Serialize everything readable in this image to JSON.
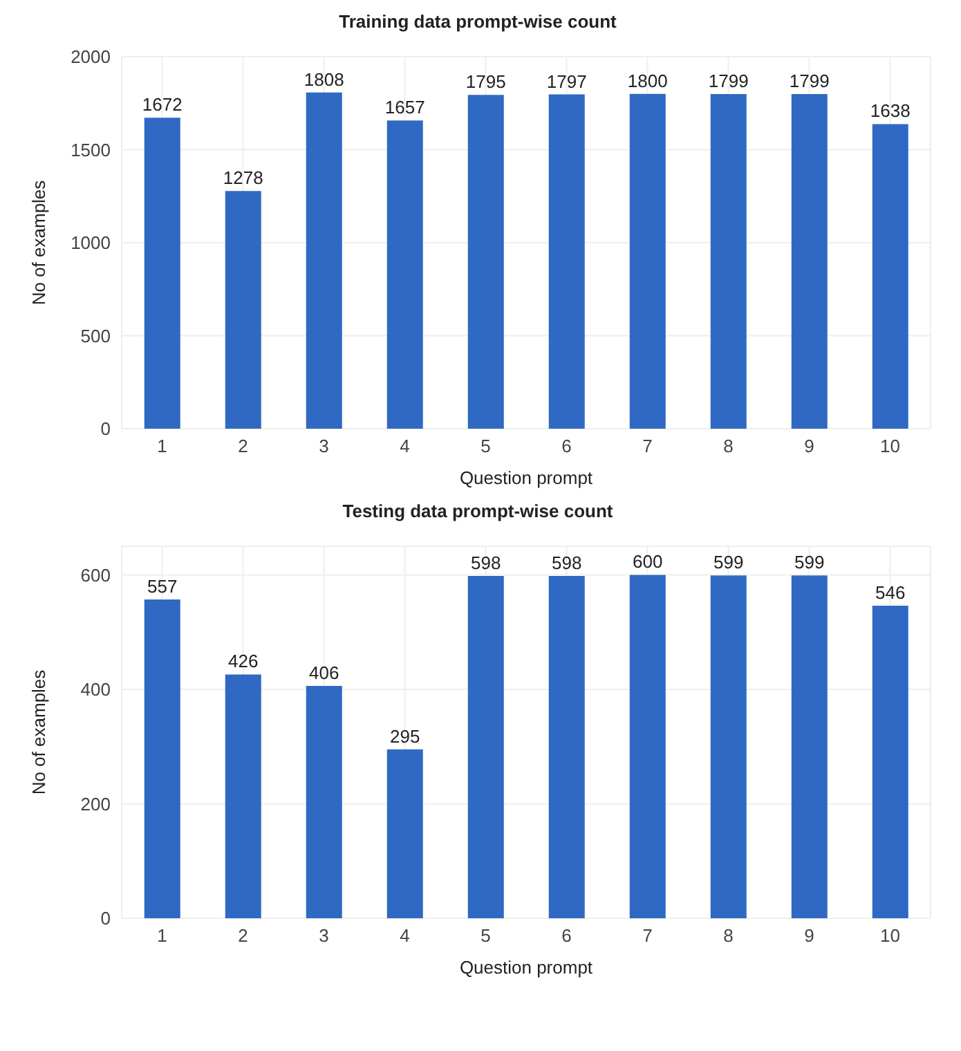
{
  "chart_data": [
    {
      "type": "bar",
      "title": "Training data prompt-wise count",
      "xlabel": "Question prompt",
      "ylabel": "No of examples",
      "categories": [
        "1",
        "2",
        "3",
        "4",
        "5",
        "6",
        "7",
        "8",
        "9",
        "10"
      ],
      "series": [
        {
          "color": "#2f69c3",
          "values": [
            1672,
            1278,
            1808,
            1657,
            1795,
            1797,
            1800,
            1799,
            1799,
            1638
          ]
        }
      ],
      "ylim": [
        0,
        2000
      ],
      "yticks": [
        0,
        500,
        1000,
        1500,
        2000
      ],
      "grid": true,
      "data_labels": true,
      "legend": false
    },
    {
      "type": "bar",
      "title": "Testing data prompt-wise count",
      "xlabel": "Question prompt",
      "ylabel": "No of examples",
      "categories": [
        "1",
        "2",
        "3",
        "4",
        "5",
        "6",
        "7",
        "8",
        "9",
        "10"
      ],
      "series": [
        {
          "color": "#2f69c3",
          "values": [
            557,
            426,
            406,
            295,
            598,
            598,
            600,
            599,
            599,
            546
          ]
        }
      ],
      "ylim": [
        0,
        650
      ],
      "yticks": [
        0,
        200,
        400,
        600
      ],
      "grid": true,
      "data_labels": true,
      "legend": false
    }
  ]
}
